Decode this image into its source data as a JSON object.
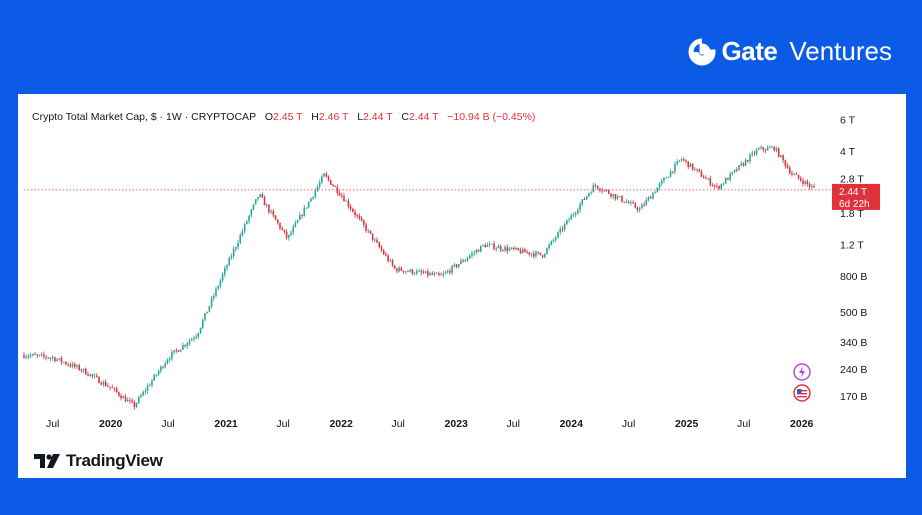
{
  "brand": {
    "strong": "Gate",
    "light": "Ventures",
    "logo_icon": "gate-logo-icon"
  },
  "header": {
    "title": "Crypto Total Market Cap, $ · 1W · CRYPTOCAP",
    "o_label": "O",
    "o_value": "2.45 T",
    "h_label": "H",
    "h_value": "2.46 T",
    "l_label": "L",
    "l_value": "2.44 T",
    "c_label": "C",
    "c_value": "2.44 T",
    "change": "−10.94 B (−0.45%)"
  },
  "price_tag": {
    "value": "2.44 T",
    "countdown": "6d 22h",
    "color": "#e0323b"
  },
  "branding_footer": {
    "text": "TradingView",
    "icon": "tradingview-logo-icon"
  },
  "icons": {
    "lightning": "lightning-icon",
    "flag": "us-flag-icon"
  },
  "colors": {
    "up": "#26a69a",
    "down": "#e0323b",
    "background": "#0b5be6"
  },
  "chart_data": {
    "type": "candlestick",
    "title": "Crypto Total Market Cap, $ · 1W · CRYPTOCAP",
    "interval": "1W",
    "y_scale": "log",
    "y_ticks": [
      "6 T",
      "4 T",
      "2.8 T",
      "1.8 T",
      "1.2 T",
      "800 B",
      "500 B",
      "340 B",
      "240 B",
      "170 B"
    ],
    "y_tick_values": [
      6000,
      4000,
      2800,
      1800,
      1200,
      800,
      500,
      340,
      240,
      170
    ],
    "x_ticks": [
      "Jul",
      "2020",
      "Jul",
      "2021",
      "Jul",
      "2022",
      "Jul",
      "2023",
      "Jul",
      "2024",
      "Jul",
      "2025",
      "Jul",
      "2026"
    ],
    "x_tick_dates": [
      "2019-07-01",
      "2020-01-01",
      "2020-07-01",
      "2021-01-01",
      "2021-07-01",
      "2022-01-01",
      "2022-07-01",
      "2023-01-01",
      "2023-07-01",
      "2024-01-01",
      "2024-07-01",
      "2025-01-01",
      "2025-07-01",
      "2026-01-01"
    ],
    "x_range": [
      "2019-04-01",
      "2026-02-28"
    ],
    "y_range": [
      150,
      6500
    ],
    "last_close": 2440,
    "approx_market_cap_path": {
      "unit": "B USD",
      "dates": [
        "2019-04-01",
        "2019-07-01",
        "2019-10-01",
        "2020-01-01",
        "2020-03-15",
        "2020-07-01",
        "2020-10-01",
        "2021-01-01",
        "2021-04-15",
        "2021-07-15",
        "2021-11-08",
        "2022-01-01",
        "2022-06-20",
        "2022-11-15",
        "2023-04-01",
        "2023-10-01",
        "2024-03-15",
        "2024-08-05",
        "2024-12-15",
        "2025-04-08",
        "2025-08-15",
        "2025-10-06",
        "2025-12-01",
        "2026-02-15"
      ],
      "values": [
        290,
        280,
        240,
        190,
        150,
        280,
        380,
        900,
        2300,
        1300,
        2950,
        2300,
        880,
        800,
        1200,
        1050,
        2600,
        1900,
        3650,
        2500,
        4100,
        4200,
        3000,
        2440
      ]
    }
  }
}
